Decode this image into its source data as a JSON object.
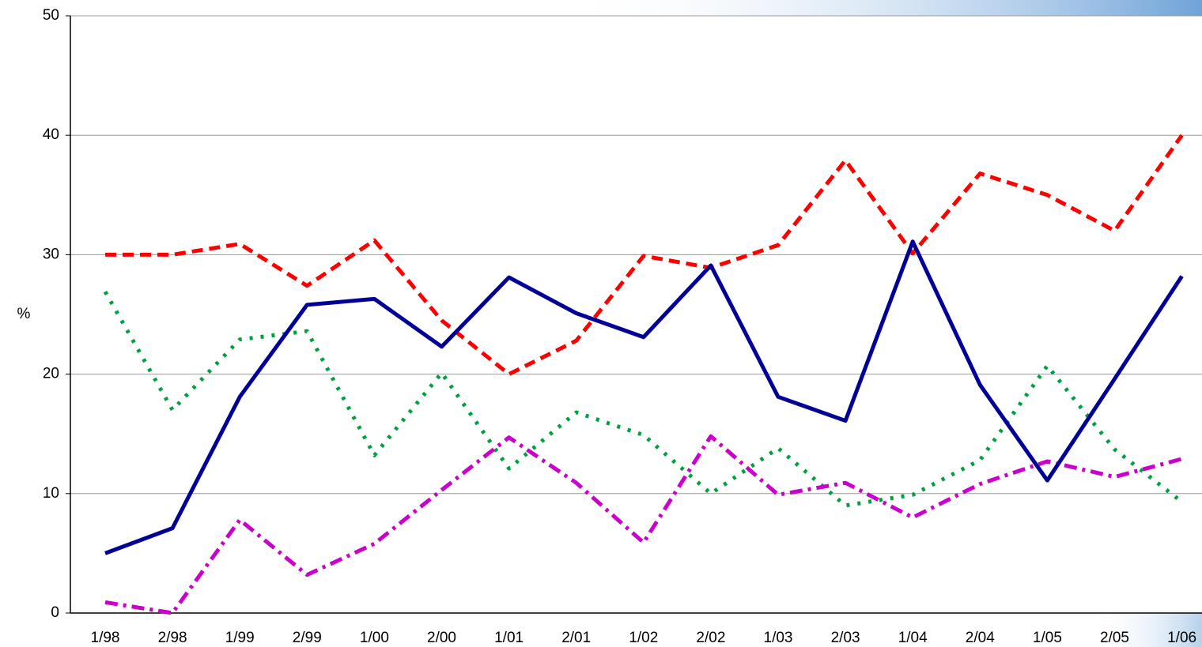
{
  "chart_data": {
    "type": "line",
    "y_label": "%",
    "categories": [
      "1/98",
      "2/98",
      "1/99",
      "2/99",
      "1/00",
      "2/00",
      "1/01",
      "2/01",
      "1/02",
      "2/02",
      "1/03",
      "2/03",
      "1/04",
      "2/04",
      "1/05",
      "2/05",
      "1/06"
    ],
    "series": [
      {
        "color": "#ff0000",
        "style": "dashed",
        "values": [
          30,
          30,
          30.9,
          27.4,
          31.2,
          24.5,
          20,
          22.8,
          29.9,
          28.9,
          30.8,
          37.9,
          30.1,
          36.8,
          35,
          32,
          40
        ]
      },
      {
        "color": "#00a040",
        "style": "dotted",
        "values": [
          26.9,
          17,
          22.9,
          23.6,
          13.2,
          20.1,
          12.1,
          16.8,
          14.9,
          10,
          13.8,
          9,
          9.9,
          12.8,
          20.7,
          13.7,
          9.3
        ]
      },
      {
        "color": "#cc00cc",
        "style": "dashdot",
        "values": [
          0.9,
          0,
          7.8,
          3.2,
          5.8,
          10.3,
          14.7,
          10.9,
          5.9,
          14.8,
          9.9,
          10.9,
          8,
          10.8,
          12.7,
          11.4,
          12.9
        ]
      },
      {
        "color": "#000099",
        "style": "solid",
        "values": [
          5,
          7.1,
          18.1,
          25.8,
          26.3,
          22.3,
          28.1,
          25.1,
          23.1,
          29.1,
          18.1,
          16.1,
          31.1,
          19.1,
          11.1,
          19.6,
          28.2
        ]
      }
    ],
    "ylim": [
      0,
      50
    ],
    "yticks": [
      0,
      10,
      20,
      30,
      40,
      50
    ],
    "grid": true
  }
}
